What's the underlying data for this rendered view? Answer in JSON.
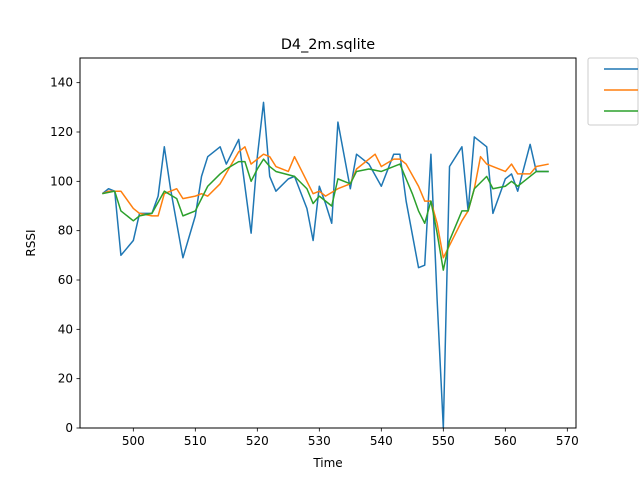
{
  "chart_data": {
    "type": "line",
    "title": "D4_2m.sqlite",
    "xlabel": "Time",
    "ylabel": "RSSI",
    "xlim": [
      491.4,
      571.4
    ],
    "ylim": [
      0,
      150
    ],
    "xticks": [
      500,
      510,
      520,
      530,
      540,
      550,
      560,
      570
    ],
    "yticks": [
      0,
      20,
      40,
      60,
      80,
      100,
      120,
      140
    ],
    "grid": false,
    "legend": "outside-top-right",
    "series": [
      {
        "color": "#1f77b4",
        "x": [
          495,
          496,
          497,
          498,
          500,
          501,
          503,
          504,
          505,
          506,
          508,
          510,
          511,
          512,
          514,
          515,
          517,
          519,
          520,
          521,
          522,
          523,
          525,
          526,
          528,
          529,
          530,
          531,
          532,
          533,
          535,
          536,
          538,
          540,
          542,
          543,
          544,
          546,
          547,
          548,
          549,
          550,
          551,
          553,
          554,
          555,
          557,
          558,
          560,
          561,
          562,
          564,
          565,
          567
        ],
        "y": [
          95,
          97,
          96,
          70,
          76,
          87,
          87,
          94,
          114,
          97,
          69,
          86,
          102,
          110,
          114,
          107,
          117,
          79,
          110,
          132,
          102,
          96,
          101,
          102,
          89,
          76,
          98,
          91,
          83,
          124,
          97,
          111,
          107,
          98,
          111,
          111,
          92,
          65,
          66,
          111,
          52,
          0,
          106,
          114,
          88,
          118,
          114,
          87,
          101,
          103,
          96,
          115,
          104,
          104
        ]
      },
      {
        "color": "#ff7f0e",
        "x": [
          495,
          496,
          498,
          500,
          501,
          503,
          504,
          505,
          507,
          508,
          510,
          511,
          512,
          514,
          517,
          518,
          519,
          520,
          521,
          522,
          523,
          525,
          526,
          528,
          529,
          530,
          531,
          533,
          535,
          536,
          539,
          540,
          542,
          543,
          544,
          546,
          547,
          548,
          549,
          550,
          551,
          553,
          554,
          555,
          556,
          557,
          558,
          560,
          561,
          562,
          564,
          565,
          567
        ],
        "y": [
          95,
          96,
          96,
          89,
          87,
          86,
          86,
          95,
          97,
          93,
          94,
          95,
          94,
          99,
          112,
          114,
          107,
          109,
          111,
          110,
          106,
          104,
          110,
          100,
          95,
          96,
          94,
          97,
          99,
          105,
          111,
          106,
          109,
          109,
          107,
          98,
          92,
          92,
          83,
          69,
          74,
          84,
          88,
          97,
          110,
          107,
          106,
          104,
          107,
          103,
          103,
          106,
          107
        ]
      },
      {
        "color": "#2ca02c",
        "x": [
          495,
          497,
          498,
          500,
          501,
          503,
          505,
          507,
          508,
          510,
          512,
          514,
          515,
          517,
          518,
          519,
          520,
          521,
          522,
          523,
          526,
          528,
          529,
          530,
          532,
          533,
          535,
          536,
          538,
          540,
          543,
          544,
          545,
          546,
          547,
          548,
          549,
          550,
          551,
          553,
          554,
          555,
          557,
          558,
          560,
          561,
          562,
          563,
          565,
          567
        ],
        "y": [
          95,
          96,
          88,
          84,
          86,
          87,
          96,
          93,
          86,
          88,
          98,
          103,
          105,
          108,
          108,
          100,
          105,
          109,
          106,
          104,
          102,
          97,
          91,
          94,
          90,
          101,
          99,
          104,
          105,
          104,
          107,
          101,
          95,
          88,
          83,
          92,
          79,
          64,
          76,
          88,
          88,
          97,
          102,
          97,
          98,
          100,
          98,
          100,
          104,
          104
        ]
      }
    ]
  }
}
